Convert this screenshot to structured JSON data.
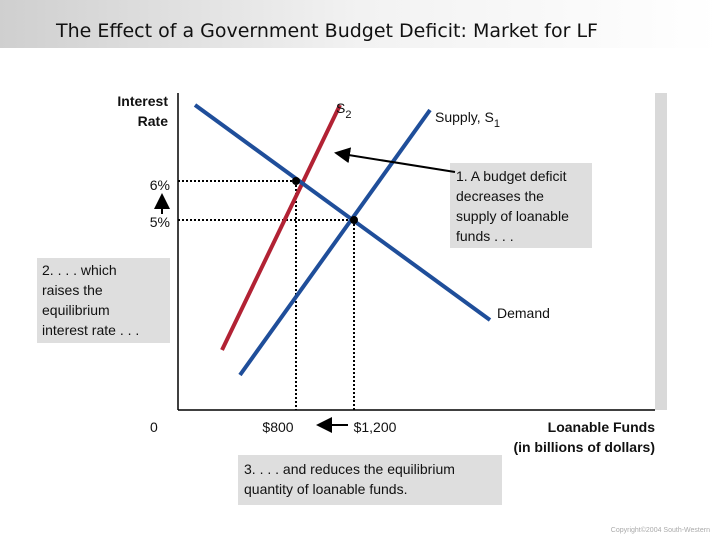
{
  "header": {
    "title": "The Effect of a Government Budget Deficit: Market for LF"
  },
  "axes": {
    "y_label": [
      "Interest",
      "Rate"
    ],
    "x_label": [
      "Loanable Funds",
      "(in billions of dollars)"
    ],
    "y_ticks": [
      "6%",
      "5%"
    ],
    "origin": "0",
    "x_ticks": [
      "$800",
      "$1,200"
    ]
  },
  "curves": {
    "s2": {
      "text": "S",
      "subscript": "2"
    },
    "s1": {
      "text": "Supply, S",
      "subscript": "1"
    },
    "demand": "Demand"
  },
  "annotations": {
    "step1": [
      "1. A budget deficit",
      "decreases the",
      "supply of loanable",
      "funds . . ."
    ],
    "step2": [
      "2. . . . which",
      "raises the",
      "equilibrium",
      "interest rate . . ."
    ],
    "step3": [
      "3. . . . and reduces the equilibrium",
      "quantity of loanable funds."
    ]
  },
  "footer": {
    "copyright": "Copyright©2004  South-Western"
  }
}
